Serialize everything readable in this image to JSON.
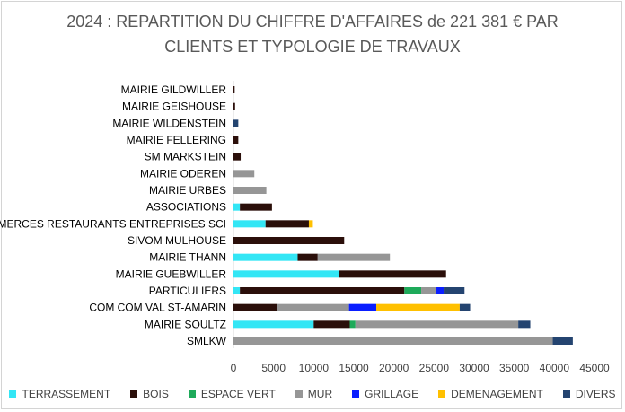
{
  "title_line1": "2024 : REPARTITION DU CHIFFRE D'AFFAIRES de 221 381 € PAR",
  "title_line2": "CLIENTS ET TYPOLOGIE  DE TRAVAUX",
  "chart_data": {
    "type": "bar",
    "orientation": "horizontal",
    "stacked": true,
    "title": "2024 : REPARTITION DU CHIFFRE D'AFFAIRES de 221 381 € PAR CLIENTS ET TYPOLOGIE  DE TRAVAUX",
    "xlim": [
      0,
      45000
    ],
    "xticks": [
      0,
      5000,
      10000,
      15000,
      20000,
      25000,
      30000,
      35000,
      40000,
      45000
    ],
    "grid": false,
    "legend_position": "bottom",
    "categories": [
      "MAIRIE GILDWILLER",
      "MAIRIE GEISHOUSE",
      "MAIRIE WILDENSTEIN",
      "MAIRIE FELLERING",
      "SM MARKSTEIN",
      "MAIRIE ODEREN",
      "MAIRIE URBES",
      "ASSOCIATIONS",
      "COMMERCES RESTAURANTS ENTREPRISES SCI",
      "SIVOM MULHOUSE",
      "MAIRIE THANN",
      "MAIRIE GUEBWILLER",
      "PARTICULIERS",
      "COM COM VAL ST-AMARIN",
      "MAIRIE SOULTZ",
      "SMLKW"
    ],
    "series": [
      {
        "name": "TERRASSEMENT",
        "color": "#33E6F5",
        "values": [
          0,
          0,
          0,
          0,
          0,
          0,
          0,
          800,
          4000,
          0,
          8000,
          13200,
          800,
          0,
          10000,
          0
        ]
      },
      {
        "name": "BOIS",
        "color": "#2B0F0A",
        "values": [
          150,
          200,
          0,
          600,
          900,
          0,
          0,
          4000,
          5400,
          13800,
          2500,
          13300,
          20500,
          5400,
          4500,
          0
        ]
      },
      {
        "name": "ESPACE VERT",
        "color": "#1EAA5A",
        "values": [
          0,
          0,
          0,
          0,
          0,
          0,
          0,
          0,
          0,
          0,
          0,
          0,
          2100,
          0,
          700,
          0
        ]
      },
      {
        "name": "MUR",
        "color": "#969696",
        "values": [
          0,
          0,
          0,
          0,
          0,
          2600,
          4100,
          0,
          0,
          0,
          9000,
          0,
          1900,
          9000,
          20300,
          39800
        ]
      },
      {
        "name": "GRILLAGE",
        "color": "#0A1EFF",
        "values": [
          0,
          0,
          0,
          0,
          0,
          0,
          0,
          0,
          0,
          0,
          0,
          0,
          900,
          3400,
          0,
          0
        ]
      },
      {
        "name": "DEMENAGEMENT",
        "color": "#FFC000",
        "values": [
          0,
          0,
          0,
          0,
          0,
          0,
          0,
          0,
          500,
          0,
          0,
          0,
          0,
          10400,
          0,
          0
        ]
      },
      {
        "name": "DIVERS",
        "color": "#244470",
        "values": [
          0,
          0,
          600,
          0,
          0,
          0,
          0,
          0,
          0,
          0,
          0,
          0,
          2600,
          1300,
          1500,
          2500
        ]
      }
    ]
  }
}
